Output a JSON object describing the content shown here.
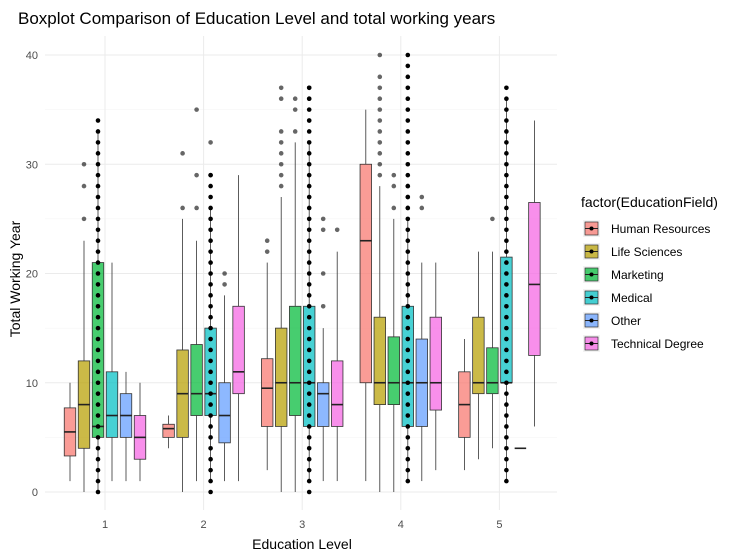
{
  "chart_data": {
    "type": "boxplot",
    "title": "Boxplot Comparison of Education Level and total working years",
    "xlabel": "Education Level",
    "ylabel": "Total Working Year",
    "categories": [
      "1",
      "2",
      "3",
      "4",
      "5"
    ],
    "ylim": [
      0,
      40
    ],
    "yticks": [
      0,
      10,
      20,
      30,
      40
    ],
    "grid": true,
    "legend": {
      "title": "factor(EducationField)",
      "placement": "right"
    },
    "series": [
      {
        "name": "Human Resources",
        "color": "#F8766D",
        "boxes": [
          {
            "category": "1",
            "whisker_low": 1,
            "q1": 3.3,
            "median": 5.5,
            "q3": 7.7,
            "whisker_high": 10,
            "outliers": []
          },
          {
            "category": "2",
            "whisker_low": 4,
            "q1": 5,
            "median": 5.8,
            "q3": 6.2,
            "whisker_high": 7,
            "outliers": []
          },
          {
            "category": "3",
            "whisker_low": 2,
            "q1": 6,
            "median": 9.5,
            "q3": 12.2,
            "whisker_high": 21,
            "outliers": [
              23,
              22
            ]
          },
          {
            "category": "4",
            "whisker_low": 1,
            "q1": 10,
            "median": 23,
            "q3": 30,
            "whisker_high": 35,
            "outliers": []
          },
          {
            "category": "5",
            "whisker_low": 2,
            "q1": 5,
            "median": 8,
            "q3": 11,
            "whisker_high": 14,
            "outliers": []
          }
        ]
      },
      {
        "name": "Life Sciences",
        "color": "#B79F00",
        "boxes": [
          {
            "category": "1",
            "whisker_low": 0,
            "q1": 4,
            "median": 8,
            "q3": 12,
            "whisker_high": 23,
            "outliers": [
              25,
              28,
              30
            ]
          },
          {
            "category": "2",
            "whisker_low": 0,
            "q1": 5,
            "median": 9,
            "q3": 13,
            "whisker_high": 25,
            "outliers": [
              26,
              31
            ]
          },
          {
            "category": "3",
            "whisker_low": 0,
            "q1": 6,
            "median": 10,
            "q3": 15,
            "whisker_high": 27,
            "outliers": [
              28,
              29,
              30,
              31,
              32,
              33,
              36,
              37
            ]
          },
          {
            "category": "4",
            "whisker_low": 0,
            "q1": 8,
            "median": 10,
            "q3": 16,
            "whisker_high": 28,
            "outliers": [
              29,
              30,
              31,
              32,
              33,
              34,
              35,
              36,
              37,
              38,
              40
            ]
          },
          {
            "category": "5",
            "whisker_low": 3,
            "q1": 9,
            "median": 10,
            "q3": 16,
            "whisker_high": 22,
            "outliers": []
          }
        ]
      },
      {
        "name": "Marketing",
        "color": "#00BA38",
        "boxes": [
          {
            "category": "1",
            "whisker_low": 0,
            "q1": 5,
            "median": 6,
            "q3": 21,
            "whisker_high": 33,
            "outliers": []
          },
          {
            "category": "2",
            "whisker_low": 1,
            "q1": 7,
            "median": 9,
            "q3": 13.5,
            "whisker_high": 23,
            "outliers": [
              26,
              29,
              35
            ]
          },
          {
            "category": "3",
            "whisker_low": 0,
            "q1": 7,
            "median": 10,
            "q3": 17,
            "whisker_high": 32,
            "outliers": [
              33,
              35,
              36
            ]
          },
          {
            "category": "4",
            "whisker_low": 0,
            "q1": 8,
            "median": 10,
            "q3": 14.2,
            "whisker_high": 25,
            "outliers": [
              26,
              28,
              29
            ]
          },
          {
            "category": "5",
            "whisker_low": 4,
            "q1": 9,
            "median": 10,
            "q3": 13.2,
            "whisker_high": 22,
            "outliers": [
              25
            ]
          }
        ]
      },
      {
        "name": "Medical",
        "color": "#00BFC4",
        "boxes": [
          {
            "category": "1",
            "whisker_low": 1,
            "q1": 5,
            "median": 7,
            "q3": 11,
            "whisker_high": 21,
            "outliers": []
          },
          {
            "category": "2",
            "whisker_low": 1,
            "q1": 7,
            "median": 9,
            "q3": 15,
            "whisker_high": 26,
            "outliers": [
              29,
              32
            ]
          },
          {
            "category": "3",
            "whisker_low": 1,
            "q1": 6,
            "median": 10,
            "q3": 17,
            "whisker_high": 32,
            "outliers": [
              34,
              36,
              37
            ]
          },
          {
            "category": "4",
            "whisker_low": 1,
            "q1": 6,
            "median": 10,
            "q3": 17,
            "whisker_high": 25,
            "outliers": [
              26,
              27,
              28
            ]
          },
          {
            "category": "5",
            "whisker_low": 1,
            "q1": 10,
            "median": 10,
            "q3": 21.5,
            "whisker_high": 36,
            "outliers": []
          }
        ]
      },
      {
        "name": "Other",
        "color": "#619CFF",
        "boxes": [
          {
            "category": "1",
            "whisker_low": 1,
            "q1": 5,
            "median": 7,
            "q3": 9,
            "whisker_high": 11,
            "outliers": []
          },
          {
            "category": "2",
            "whisker_low": 1,
            "q1": 4.5,
            "median": 7,
            "q3": 10,
            "whisker_high": 18,
            "outliers": [
              19,
              20
            ]
          },
          {
            "category": "3",
            "whisker_low": 1,
            "q1": 6,
            "median": 9,
            "q3": 10,
            "whisker_high": 15,
            "outliers": [
              17,
              20,
              24,
              25
            ]
          },
          {
            "category": "4",
            "whisker_low": 1,
            "q1": 6,
            "median": 10,
            "q3": 14,
            "whisker_high": 21,
            "outliers": [
              26,
              27
            ]
          },
          {
            "category": "5",
            "whisker_low": 4,
            "q1": 4,
            "median": 4,
            "q3": 4,
            "whisker_high": 4,
            "outliers": []
          }
        ]
      },
      {
        "name": "Technical Degree",
        "color": "#F564E3",
        "boxes": [
          {
            "category": "1",
            "whisker_low": 1,
            "q1": 3,
            "median": 5,
            "q3": 7,
            "whisker_high": 10,
            "outliers": []
          },
          {
            "category": "2",
            "whisker_low": 1,
            "q1": 9,
            "median": 11,
            "q3": 17,
            "whisker_high": 29,
            "outliers": []
          },
          {
            "category": "3",
            "whisker_low": 1,
            "q1": 6,
            "median": 8,
            "q3": 12,
            "whisker_high": 22,
            "outliers": [
              24
            ]
          },
          {
            "category": "4",
            "whisker_low": 2,
            "q1": 7.5,
            "median": 10,
            "q3": 16,
            "whisker_high": 21,
            "outliers": []
          },
          {
            "category": "5",
            "whisker_low": 6,
            "q1": 12.5,
            "median": 19,
            "q3": 26.5,
            "whisker_high": 34,
            "outliers": []
          }
        ]
      }
    ],
    "dense_columns": [
      {
        "category": "1",
        "series": "Marketing",
        "values": [
          0,
          1,
          2,
          3,
          4,
          5,
          6,
          7,
          8,
          9,
          10,
          11,
          12,
          13,
          14,
          15,
          16,
          17,
          18,
          19,
          20,
          21,
          22,
          23,
          24,
          25,
          26,
          27,
          28,
          29,
          30,
          31,
          32,
          33,
          34
        ]
      },
      {
        "category": "2",
        "series": "Medical",
        "values": [
          0,
          1,
          2,
          3,
          4,
          5,
          6,
          7,
          8,
          9,
          10,
          11,
          12,
          13,
          14,
          15,
          16,
          17,
          18,
          19,
          20,
          21,
          22,
          23,
          24,
          25,
          26,
          27,
          28,
          29
        ]
      },
      {
        "category": "3",
        "series": "Medical",
        "values": [
          0,
          1,
          2,
          3,
          4,
          5,
          6,
          7,
          8,
          9,
          10,
          11,
          12,
          13,
          14,
          15,
          16,
          17,
          18,
          19,
          20,
          21,
          22,
          23,
          24,
          25,
          26,
          27,
          28,
          29,
          30,
          31,
          32,
          33,
          34,
          35,
          36,
          37
        ]
      },
      {
        "category": "4",
        "series": "Medical",
        "values": [
          1,
          2,
          3,
          4,
          5,
          6,
          7,
          8,
          9,
          10,
          11,
          12,
          13,
          14,
          15,
          16,
          17,
          18,
          19,
          20,
          21,
          22,
          23,
          24,
          25,
          26,
          27,
          28,
          29,
          30,
          31,
          32,
          33,
          34,
          35,
          36,
          37,
          38,
          39,
          40
        ]
      },
      {
        "category": "5",
        "series": "Medical",
        "values": [
          1,
          2,
          3,
          4,
          5,
          6,
          7,
          8,
          9,
          10,
          11,
          12,
          13,
          14,
          15,
          16,
          17,
          18,
          19,
          20,
          21,
          22,
          23,
          24,
          25,
          26,
          27,
          28,
          29,
          30,
          31,
          32,
          33,
          34,
          35,
          36,
          37
        ]
      }
    ]
  }
}
